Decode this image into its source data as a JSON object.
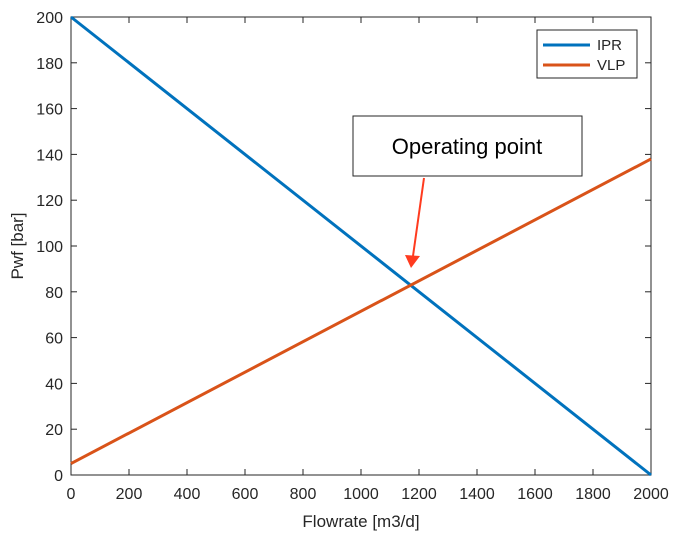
{
  "chart_data": {
    "type": "line",
    "title": "",
    "xlabel": "Flowrate [m3/d]",
    "ylabel": "Pwf [bar]",
    "xlim": [
      0,
      2000
    ],
    "ylim": [
      0,
      200
    ],
    "xticks": [
      0,
      200,
      400,
      600,
      800,
      1000,
      1200,
      1400,
      1600,
      1800,
      2000
    ],
    "yticks": [
      0,
      20,
      40,
      60,
      80,
      100,
      120,
      140,
      160,
      180,
      200
    ],
    "grid": false,
    "legend": "top-right",
    "series": [
      {
        "name": "IPR",
        "color": "#0072BD",
        "x": [
          0,
          2000
        ],
        "y": [
          200,
          0
        ]
      },
      {
        "name": "VLP",
        "color": "#D95319",
        "x": [
          0,
          2000
        ],
        "y": [
          5,
          138
        ]
      }
    ],
    "annotation": {
      "text": "Operating point",
      "point": [
        1170,
        83
      ],
      "arrow_color": "#FF3B1F"
    }
  }
}
